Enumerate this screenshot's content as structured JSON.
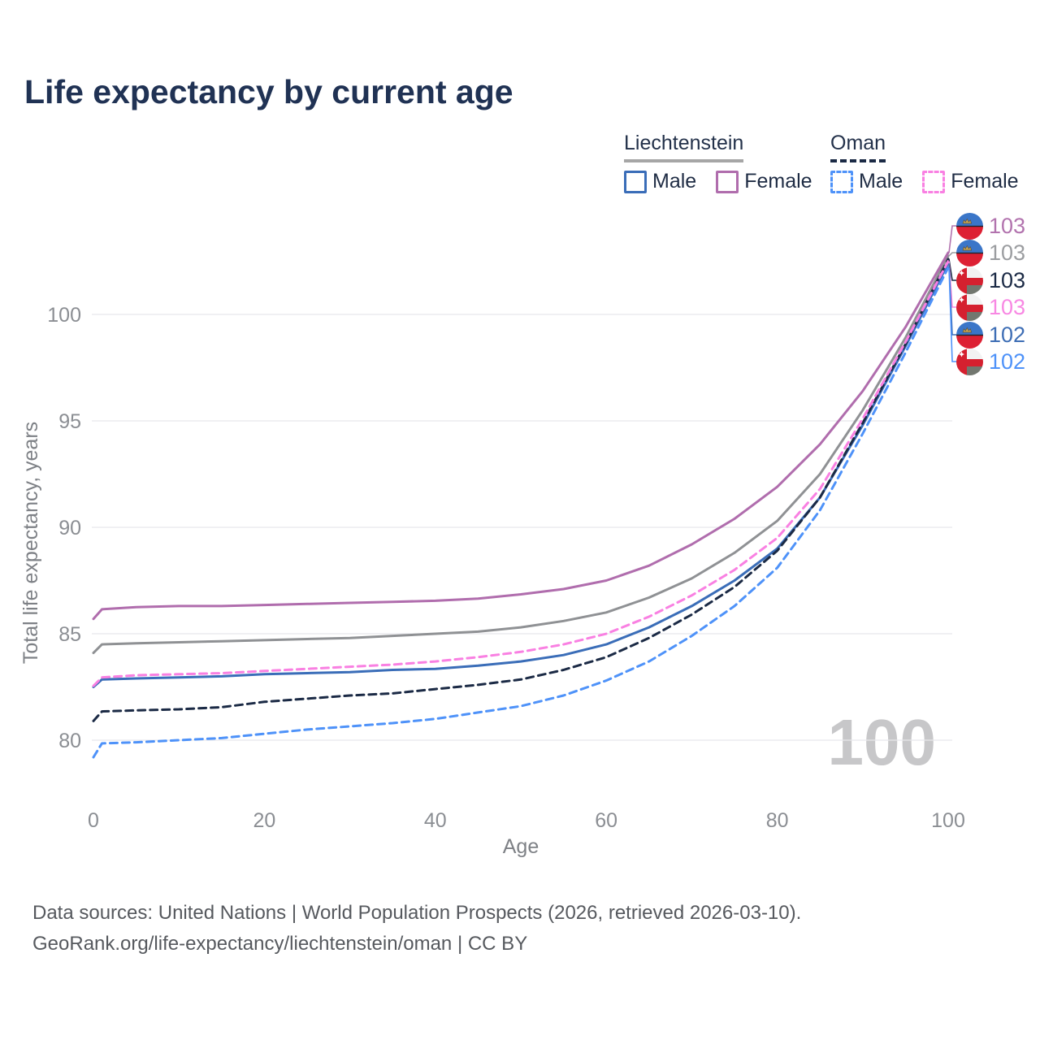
{
  "title": "Life expectancy by current age",
  "watermark": "100",
  "legend": {
    "groups": [
      {
        "country": "Liechtenstein",
        "line_style": "solid",
        "underline_color": "#a6a6a6",
        "items": [
          {
            "label": "Male",
            "color": "#3a6db8"
          },
          {
            "label": "Female",
            "color": "#b06dad"
          }
        ]
      },
      {
        "country": "Oman",
        "line_style": "dashed",
        "underline_color": "#1b2a45",
        "items": [
          {
            "label": "Male",
            "color": "#4e92f9"
          },
          {
            "label": "Female",
            "color": "#f980e2"
          }
        ]
      }
    ]
  },
  "footer": {
    "line1": "Data sources: United Nations | World Population Prospects (2026, retrieved 2026-03-10).",
    "line2": "GeoRank.org/life-expectancy/liechtenstein/oman | CC BY"
  },
  "chart_data": {
    "type": "line",
    "title": "Life expectancy by current age",
    "xlabel": "Age",
    "ylabel": "Total life expectancy, years",
    "xlim": [
      0,
      100
    ],
    "ylim": [
      78.5,
      103.5
    ],
    "x_ticks": [
      0,
      20,
      40,
      60,
      80,
      100
    ],
    "y_ticks": [
      80,
      85,
      90,
      95,
      100
    ],
    "grid": "horizontal-only",
    "legend_position": "top-right",
    "x": [
      0,
      1,
      5,
      10,
      15,
      20,
      25,
      30,
      35,
      40,
      45,
      50,
      55,
      60,
      65,
      70,
      75,
      80,
      85,
      90,
      95,
      100
    ],
    "series": [
      {
        "name": "Liechtenstein Total",
        "country": "Liechtenstein",
        "sex": "Both",
        "color": "#8f9194",
        "dash": "solid",
        "values": [
          84.1,
          84.5,
          84.55,
          84.6,
          84.65,
          84.7,
          84.75,
          84.8,
          84.9,
          85.0,
          85.1,
          85.3,
          85.6,
          86.0,
          86.7,
          87.6,
          88.8,
          90.3,
          92.5,
          95.5,
          98.9,
          102.75
        ]
      },
      {
        "name": "Liechtenstein Female",
        "country": "Liechtenstein",
        "sex": "Female",
        "color": "#b06dad",
        "dash": "solid",
        "values": [
          85.7,
          86.15,
          86.25,
          86.3,
          86.3,
          86.35,
          86.4,
          86.45,
          86.5,
          86.55,
          86.65,
          86.85,
          87.1,
          87.5,
          88.2,
          89.2,
          90.4,
          91.9,
          93.9,
          96.4,
          99.4,
          102.9
        ]
      },
      {
        "name": "Liechtenstein Male",
        "country": "Liechtenstein",
        "sex": "Male",
        "color": "#3a6db8",
        "dash": "solid",
        "values": [
          82.5,
          82.85,
          82.9,
          82.95,
          83.0,
          83.1,
          83.15,
          83.2,
          83.3,
          83.35,
          83.5,
          83.7,
          84.0,
          84.5,
          85.3,
          86.3,
          87.5,
          89.0,
          91.4,
          94.8,
          98.5,
          102.4
        ]
      },
      {
        "name": "Oman Total",
        "country": "Oman",
        "sex": "Both",
        "color": "#1b2a45",
        "dash": "dashed",
        "values": [
          80.9,
          81.35,
          81.4,
          81.45,
          81.55,
          81.8,
          81.95,
          82.1,
          82.2,
          82.4,
          82.6,
          82.85,
          83.3,
          83.9,
          84.8,
          85.9,
          87.2,
          88.9,
          91.4,
          94.9,
          98.6,
          102.6
        ]
      },
      {
        "name": "Oman Female",
        "country": "Oman",
        "sex": "Female",
        "color": "#f980e2",
        "dash": "dashed",
        "values": [
          82.55,
          82.95,
          83.05,
          83.1,
          83.15,
          83.25,
          83.35,
          83.45,
          83.55,
          83.7,
          83.9,
          84.15,
          84.5,
          85.0,
          85.8,
          86.8,
          88.0,
          89.5,
          91.8,
          95.1,
          98.7,
          102.5
        ]
      },
      {
        "name": "Oman Male",
        "country": "Oman",
        "sex": "Male",
        "color": "#4e92f9",
        "dash": "dashed",
        "values": [
          79.2,
          79.85,
          79.9,
          80.0,
          80.1,
          80.3,
          80.5,
          80.65,
          80.8,
          81.0,
          81.3,
          81.6,
          82.1,
          82.8,
          83.7,
          84.9,
          86.3,
          88.1,
          90.8,
          94.4,
          98.2,
          102.2
        ]
      }
    ],
    "end_labels": [
      {
        "value": "103",
        "color": "#b273ae",
        "flag": "liechtenstein",
        "series_index": 1
      },
      {
        "value": "103",
        "color": "#9b9da0",
        "flag": "liechtenstein",
        "series_index": 0
      },
      {
        "value": "103",
        "color": "#1b2a45",
        "flag": "oman",
        "series_index": 3
      },
      {
        "value": "103",
        "color": "#f888e3",
        "flag": "oman",
        "series_index": 4
      },
      {
        "value": "102",
        "color": "#3e6eb5",
        "flag": "liechtenstein",
        "series_index": 2
      },
      {
        "value": "102",
        "color": "#4e92f9",
        "flag": "oman",
        "series_index": 5
      }
    ]
  }
}
